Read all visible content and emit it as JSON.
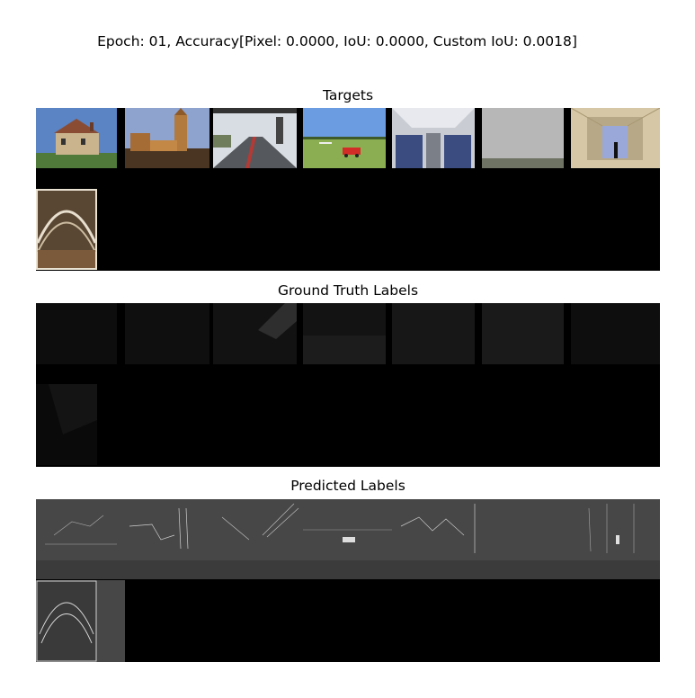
{
  "figure": {
    "suptitle": "Epoch: 01, Accuracy[Pixel: 0.0000, IoU: 0.0000, Custom IoU: 0.0018]"
  },
  "chart_data": [
    {
      "type": "image-grid",
      "title": "Targets",
      "grid": {
        "columns": 7,
        "rows": 2,
        "images": 8
      },
      "tiles": [
        "house",
        "church",
        "road",
        "airfield",
        "airplane-cabin",
        "fog",
        "corridor",
        "arched-structure"
      ]
    },
    {
      "type": "image-grid",
      "title": "Ground Truth Labels",
      "grid": {
        "columns": 7,
        "rows": 2,
        "images": 8
      },
      "tiles": [
        "label-mask",
        "label-mask",
        "label-mask",
        "label-mask",
        "label-mask",
        "label-mask",
        "label-mask",
        "label-mask"
      ]
    },
    {
      "type": "image-grid",
      "title": "Predicted Labels",
      "grid": {
        "columns": 7,
        "rows": 2,
        "images": 8
      },
      "tiles": [
        "edge-map",
        "edge-map",
        "edge-map",
        "edge-map",
        "edge-map",
        "edge-map",
        "edge-map",
        "edge-map"
      ]
    }
  ]
}
